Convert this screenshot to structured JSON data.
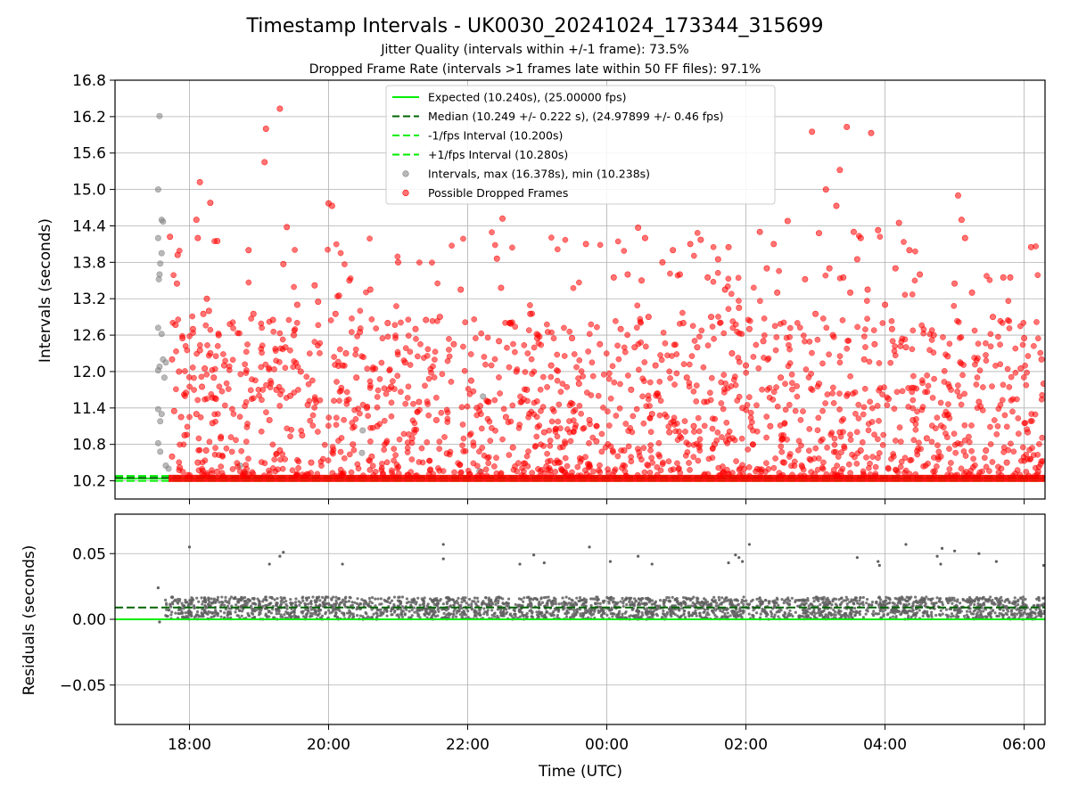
{
  "chart_data": {
    "type": "scatter",
    "title": "Timestamp Intervals - UK0030_20241024_173344_315699",
    "subtitle_lines": [
      "Jitter Quality (intervals within +/-1 frame): 73.5%",
      "Dropped Frame Rate (intervals >1 frames late within 50 FF files): 97.1%"
    ],
    "xlabel": "Time (UTC)",
    "x_tick_labels": [
      "18:00",
      "20:00",
      "22:00",
      "00:00",
      "02:00",
      "04:00",
      "06:00"
    ],
    "x_ticks_hours": [
      18,
      20,
      22,
      24,
      26,
      28,
      30
    ],
    "xlim_hours": [
      16.93,
      30.3
    ],
    "colors": {
      "expected": "#00ee00",
      "median": "#006400",
      "interval_bounds": "#00ee00",
      "intervals": "#808080",
      "dropped": "#ff0000",
      "residuals": "#606060",
      "grid": "#b0b0b0"
    },
    "panels": [
      {
        "name": "intervals",
        "ylabel": "Intervals (seconds)",
        "ylim": [
          9.9,
          16.8
        ],
        "y_ticks": [
          10.2,
          10.8,
          11.4,
          12.0,
          12.6,
          13.2,
          13.8,
          14.4,
          15.0,
          15.6,
          16.2,
          16.8
        ],
        "y_tick_labels": [
          "10.2",
          "10.8",
          "11.4",
          "12.0",
          "12.6",
          "13.2",
          "13.8",
          "14.4",
          "15.0",
          "15.6",
          "16.2",
          "16.8"
        ],
        "grid": true,
        "legend": {
          "placement": "upper-center",
          "entries": [
            {
              "label": "Expected (10.240s), (25.00000 fps)",
              "style": "solid-line",
              "color": "#00ee00"
            },
            {
              "label": "Median (10.249 +/- 0.222 s), (24.97899 +/- 0.46 fps)",
              "style": "dashed-line",
              "color": "#006400"
            },
            {
              "label": "-1/fps Interval (10.200s)",
              "style": "dashed-line",
              "color": "#00ee00"
            },
            {
              "label": "+1/fps Interval (10.280s)",
              "style": "dashed-line",
              "color": "#00ee00"
            },
            {
              "label": "Intervals, max (16.378s), min (10.238s)",
              "style": "marker",
              "color": "#808080"
            },
            {
              "label": "Possible Dropped Frames",
              "style": "marker",
              "color": "#ff0000"
            }
          ]
        },
        "reference_lines": {
          "expected": 10.24,
          "median": 10.249,
          "minus_one_fps": 10.2,
          "plus_one_fps": 10.28
        },
        "baseline": {
          "y": 10.24,
          "x_start_hours": 17.7,
          "x_end_hours": 30.3
        },
        "gray_points": [
          [
            17.57,
            16.21
          ],
          [
            17.55,
            15.0
          ],
          [
            17.6,
            14.5
          ],
          [
            17.62,
            14.47
          ],
          [
            17.55,
            14.2
          ],
          [
            17.6,
            13.95
          ],
          [
            17.58,
            13.78
          ],
          [
            17.57,
            13.6
          ],
          [
            17.56,
            13.52
          ],
          [
            17.55,
            12.72
          ],
          [
            17.6,
            12.62
          ],
          [
            17.62,
            12.2
          ],
          [
            17.66,
            12.15
          ],
          [
            17.57,
            12.08
          ],
          [
            17.55,
            12.02
          ],
          [
            17.64,
            11.9
          ],
          [
            17.55,
            11.38
          ],
          [
            17.6,
            11.3
          ],
          [
            17.58,
            11.18
          ],
          [
            17.55,
            10.82
          ],
          [
            17.58,
            10.68
          ],
          [
            17.66,
            10.45
          ],
          [
            17.7,
            10.4
          ],
          [
            18.73,
            10.45
          ],
          [
            18.8,
            10.32
          ],
          [
            20.48,
            10.66
          ],
          [
            20.49,
            11.03
          ],
          [
            22.22,
            11.59
          ],
          [
            22.17,
            10.36
          ]
        ],
        "red_points": [
          [
            17.72,
            14.22
          ],
          [
            17.83,
            13.92
          ],
          [
            17.82,
            13.45
          ],
          [
            17.8,
            12.77
          ],
          [
            17.9,
            12.55
          ],
          [
            17.75,
            12.2
          ],
          [
            17.85,
            12.0
          ],
          [
            17.95,
            11.65
          ],
          [
            17.78,
            11.35
          ],
          [
            17.88,
            11.25
          ],
          [
            17.93,
            10.95
          ],
          [
            17.75,
            10.6
          ],
          [
            17.86,
            10.42
          ],
          [
            18.15,
            15.12
          ],
          [
            18.1,
            14.5
          ],
          [
            18.3,
            14.78
          ],
          [
            18.12,
            14.2
          ],
          [
            18.4,
            14.15
          ],
          [
            18.25,
            13.2
          ],
          [
            18.2,
            12.95
          ],
          [
            18.28,
            13.0
          ],
          [
            18.05,
            12.7
          ],
          [
            18.15,
            12.35
          ],
          [
            18.3,
            12.3
          ],
          [
            18.42,
            12.6
          ],
          [
            18.22,
            12.05
          ],
          [
            18.35,
            11.9
          ],
          [
            18.5,
            12.1
          ],
          [
            18.18,
            11.75
          ],
          [
            18.38,
            11.55
          ],
          [
            18.1,
            11.3
          ],
          [
            18.33,
            11.15
          ],
          [
            18.45,
            10.9
          ],
          [
            18.24,
            10.7
          ],
          [
            18.12,
            10.5
          ],
          [
            18.4,
            10.35
          ],
          [
            18.85,
            14.0
          ],
          [
            18.92,
            12.95
          ],
          [
            19.1,
            16.0
          ],
          [
            19.08,
            15.45
          ],
          [
            19.3,
            16.33
          ],
          [
            19.4,
            14.38
          ],
          [
            19.35,
            13.77
          ],
          [
            19.2,
            12.85
          ],
          [
            19.55,
            13.1
          ],
          [
            19.5,
            12.6
          ],
          [
            19.38,
            12.4
          ],
          [
            19.6,
            12.0
          ],
          [
            19.25,
            11.7
          ],
          [
            19.45,
            11.6
          ],
          [
            19.7,
            11.45
          ],
          [
            19.15,
            11.2
          ],
          [
            19.62,
            10.95
          ],
          [
            19.3,
            10.7
          ],
          [
            19.75,
            10.5
          ],
          [
            19.85,
            13.15
          ],
          [
            19.8,
            13.42
          ],
          [
            20.0,
            14.77
          ],
          [
            20.05,
            14.73
          ],
          [
            20.1,
            12.95
          ],
          [
            20.15,
            13.25
          ],
          [
            20.25,
            12.3
          ],
          [
            20.3,
            13.5
          ],
          [
            20.45,
            12.65
          ],
          [
            20.6,
            13.35
          ],
          [
            20.2,
            12.1
          ],
          [
            20.4,
            11.9
          ],
          [
            20.55,
            11.4
          ],
          [
            20.7,
            11.1
          ],
          [
            20.35,
            10.8
          ],
          [
            20.62,
            10.6
          ],
          [
            20.85,
            12.8
          ],
          [
            21.0,
            13.8
          ],
          [
            21.25,
            12.7
          ],
          [
            21.4,
            12.85
          ],
          [
            21.6,
            12.9
          ],
          [
            20.9,
            11.75
          ],
          [
            21.1,
            12.15
          ],
          [
            21.3,
            11.5
          ],
          [
            21.55,
            11.2
          ],
          [
            21.8,
            12.45
          ],
          [
            21.2,
            10.9
          ],
          [
            21.7,
            10.65
          ],
          [
            21.9,
            13.35
          ],
          [
            22.05,
            11.85
          ],
          [
            22.3,
            11.5
          ],
          [
            22.42,
            13.86
          ],
          [
            22.5,
            14.52
          ],
          [
            22.48,
            13.38
          ],
          [
            22.6,
            12.8
          ],
          [
            22.45,
            12.5
          ],
          [
            22.9,
            12.95
          ],
          [
            23.0,
            12.55
          ],
          [
            22.7,
            12.0
          ],
          [
            22.85,
            11.7
          ],
          [
            23.2,
            12.1
          ],
          [
            22.55,
            11.25
          ],
          [
            23.1,
            11.0
          ],
          [
            22.65,
            10.75
          ],
          [
            23.3,
            10.5
          ],
          [
            23.5,
            12.55
          ],
          [
            23.7,
            14.1
          ],
          [
            23.6,
            11.8
          ],
          [
            23.9,
            12.45
          ],
          [
            23.75,
            11.2
          ],
          [
            23.85,
            10.85
          ],
          [
            24.1,
            13.55
          ],
          [
            24.2,
            12.7
          ],
          [
            24.3,
            13.6
          ],
          [
            24.45,
            14.37
          ],
          [
            24.55,
            14.2
          ],
          [
            24.5,
            13.5
          ],
          [
            24.4,
            12.4
          ],
          [
            24.6,
            12.9
          ],
          [
            24.8,
            13.8
          ],
          [
            24.7,
            12.1
          ],
          [
            24.95,
            14.0
          ],
          [
            24.35,
            11.7
          ],
          [
            24.65,
            11.3
          ],
          [
            24.9,
            11.0
          ],
          [
            24.25,
            10.7
          ],
          [
            25.05,
            13.6
          ],
          [
            25.2,
            14.1
          ],
          [
            25.35,
            14.17
          ],
          [
            25.45,
            13.55
          ],
          [
            25.6,
            13.85
          ],
          [
            25.1,
            12.8
          ],
          [
            25.3,
            12.4
          ],
          [
            25.5,
            12.9
          ],
          [
            25.15,
            11.9
          ],
          [
            25.4,
            11.5
          ],
          [
            25.25,
            11.1
          ],
          [
            25.55,
            10.8
          ],
          [
            25.75,
            14.05
          ],
          [
            25.7,
            13.35
          ],
          [
            25.9,
            13.05
          ],
          [
            26.05,
            12.7
          ],
          [
            26.2,
            14.3
          ],
          [
            26.3,
            13.7
          ],
          [
            26.45,
            13.3
          ],
          [
            26.6,
            14.48
          ],
          [
            26.4,
            14.1
          ],
          [
            25.8,
            12.3
          ],
          [
            26.0,
            12.1
          ],
          [
            26.25,
            12.5
          ],
          [
            26.5,
            11.9
          ],
          [
            25.95,
            11.4
          ],
          [
            26.35,
            11.1
          ],
          [
            26.1,
            10.8
          ],
          [
            26.55,
            10.5
          ],
          [
            26.85,
            13.52
          ],
          [
            26.95,
            15.95
          ],
          [
            27.05,
            14.28
          ],
          [
            27.15,
            15.0
          ],
          [
            27.3,
            14.73
          ],
          [
            27.35,
            15.32
          ],
          [
            27.45,
            16.03
          ],
          [
            27.55,
            14.3
          ],
          [
            27.65,
            14.2
          ],
          [
            27.8,
            15.93
          ],
          [
            27.9,
            14.33
          ],
          [
            27.6,
            13.85
          ],
          [
            27.4,
            13.55
          ],
          [
            27.2,
            13.7
          ],
          [
            27.5,
            13.3
          ],
          [
            27.75,
            13.35
          ],
          [
            27.85,
            12.45
          ],
          [
            27.0,
            12.95
          ],
          [
            27.25,
            12.6
          ],
          [
            27.7,
            12.2
          ],
          [
            27.05,
            11.8
          ],
          [
            27.45,
            11.6
          ],
          [
            27.35,
            11.0
          ],
          [
            27.65,
            10.7
          ],
          [
            28.0,
            13.1
          ],
          [
            28.15,
            13.7
          ],
          [
            28.2,
            14.45
          ],
          [
            28.35,
            14.0
          ],
          [
            28.1,
            12.7
          ],
          [
            28.3,
            12.4
          ],
          [
            28.5,
            13.6
          ],
          [
            28.7,
            12.6
          ],
          [
            28.9,
            12.25
          ],
          [
            28.05,
            11.55
          ],
          [
            28.4,
            11.2
          ],
          [
            28.6,
            10.9
          ],
          [
            28.8,
            10.6
          ],
          [
            29.05,
            14.9
          ],
          [
            29.1,
            14.5
          ],
          [
            29.15,
            14.2
          ],
          [
            29.25,
            13.3
          ],
          [
            29.0,
            13.45
          ],
          [
            29.35,
            11.5
          ],
          [
            29.55,
            12.9
          ],
          [
            29.7,
            13.55
          ],
          [
            29.8,
            13.55
          ],
          [
            29.95,
            12.05
          ],
          [
            30.0,
            12.55
          ],
          [
            30.1,
            14.05
          ],
          [
            30.25,
            12.2
          ],
          [
            30.28,
            11.8
          ],
          [
            30.05,
            11.0
          ],
          [
            29.45,
            10.7
          ],
          [
            29.75,
            10.5
          ],
          [
            30.2,
            10.35
          ]
        ]
      },
      {
        "name": "residuals",
        "ylabel": "Residuals (seconds)",
        "ylim": [
          -0.08,
          0.08
        ],
        "y_ticks": [
          -0.05,
          0.0,
          0.05
        ],
        "y_tick_labels": [
          "−0.05",
          "0.00",
          "0.05"
        ],
        "grid": true,
        "reference_lines": {
          "zero": 0.0,
          "median": 0.009
        },
        "band": {
          "y_min": 0.0,
          "y_max": 0.017,
          "x_start_hours": 17.6,
          "x_end_hours": 30.3
        },
        "outliers": [
          [
            17.55,
            0.024
          ],
          [
            17.57,
            -0.002
          ],
          [
            18.0,
            0.055
          ],
          [
            19.15,
            0.042
          ],
          [
            19.3,
            0.048
          ],
          [
            19.35,
            0.051
          ],
          [
            20.2,
            0.042
          ],
          [
            21.65,
            0.057
          ],
          [
            21.65,
            0.046
          ],
          [
            22.75,
            0.042
          ],
          [
            22.95,
            0.049
          ],
          [
            23.1,
            0.043
          ],
          [
            23.75,
            0.055
          ],
          [
            24.05,
            0.044
          ],
          [
            24.45,
            0.048
          ],
          [
            24.65,
            0.042
          ],
          [
            25.75,
            0.043
          ],
          [
            25.85,
            0.049
          ],
          [
            25.9,
            0.047
          ],
          [
            25.95,
            0.044
          ],
          [
            26.05,
            0.057
          ],
          [
            27.6,
            0.047
          ],
          [
            27.9,
            0.044
          ],
          [
            27.92,
            0.041
          ],
          [
            28.3,
            0.057
          ],
          [
            28.75,
            0.048
          ],
          [
            28.82,
            0.054
          ],
          [
            28.8,
            0.042
          ],
          [
            29.0,
            0.052
          ],
          [
            29.35,
            0.05
          ],
          [
            29.6,
            0.044
          ],
          [
            30.28,
            0.041
          ]
        ]
      }
    ]
  }
}
